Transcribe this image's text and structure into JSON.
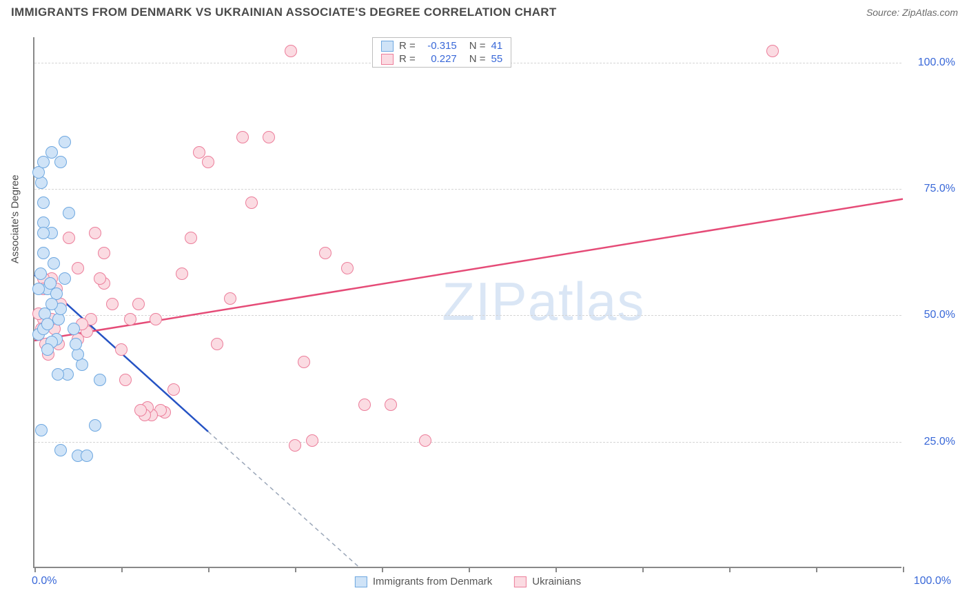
{
  "title": "IMMIGRANTS FROM DENMARK VS UKRAINIAN ASSOCIATE'S DEGREE CORRELATION CHART",
  "source": "Source: ZipAtlas.com",
  "watermark_bold": "ZIP",
  "watermark_thin": "atlas",
  "chart": {
    "type": "scatter",
    "xlim": [
      0,
      100
    ],
    "ylim": [
      0,
      105
    ],
    "x_ticks": [
      0,
      10,
      20,
      30,
      40,
      50,
      60,
      70,
      80,
      90,
      100
    ],
    "y_gridlines": [
      25,
      50,
      75,
      100
    ],
    "y_tick_labels": [
      "25.0%",
      "50.0%",
      "75.0%",
      "100.0%"
    ],
    "x_tick_left": "0.0%",
    "x_tick_right": "100.0%",
    "y_axis_label": "Associate's Degree",
    "background": "#ffffff",
    "grid_color": "#d4d4d4",
    "axis_color": "#888888",
    "tick_label_color": "#3968d8",
    "series": [
      {
        "name": "Immigrants from Denmark",
        "marker_fill": "#cfe3f7",
        "marker_stroke": "#6da7e0",
        "line_color": "#2553c4",
        "dash_color": "#9aa6b8",
        "R_label": "R =",
        "R_value": "-0.315",
        "N_label": "N =",
        "N_value": "41",
        "trend_line": {
          "x1": 0,
          "y1": 58,
          "x2": 20,
          "y2": 27
        },
        "trend_dash": {
          "x1": 20,
          "y1": 27,
          "x2": 37.5,
          "y2": 0
        },
        "points": [
          [
            0.5,
            55
          ],
          [
            1,
            62
          ],
          [
            1,
            66
          ],
          [
            1.5,
            48
          ],
          [
            2,
            52
          ],
          [
            1,
            80
          ],
          [
            2,
            82
          ],
          [
            3.5,
            84
          ],
          [
            3,
            80
          ],
          [
            1,
            72
          ],
          [
            0.5,
            78
          ],
          [
            0.8,
            76
          ],
          [
            1,
            68
          ],
          [
            1.8,
            56
          ],
          [
            2.2,
            60
          ],
          [
            2.5,
            54
          ],
          [
            1.2,
            50
          ],
          [
            1,
            47
          ],
          [
            0.5,
            46
          ],
          [
            1.5,
            43
          ],
          [
            2,
            44.5
          ],
          [
            2.5,
            45
          ],
          [
            3,
            51
          ],
          [
            3.5,
            57
          ],
          [
            4,
            70
          ],
          [
            4.5,
            47
          ],
          [
            4.8,
            44
          ],
          [
            5,
            42
          ],
          [
            2.7,
            38
          ],
          [
            3.8,
            38
          ],
          [
            5.5,
            40
          ],
          [
            6,
            22
          ],
          [
            5,
            22
          ],
          [
            0.8,
            27
          ],
          [
            3,
            23
          ],
          [
            7,
            28
          ],
          [
            7.5,
            37
          ],
          [
            1.5,
            55
          ],
          [
            2,
            66
          ],
          [
            0.7,
            58
          ],
          [
            2.8,
            49
          ]
        ]
      },
      {
        "name": "Ukrainians",
        "marker_fill": "#fbdbe2",
        "marker_stroke": "#ec7d9a",
        "line_color": "#e54b77",
        "R_label": "R =",
        "R_value": "0.227",
        "N_label": "N =",
        "N_value": "55",
        "trend_line": {
          "x1": 0,
          "y1": 45,
          "x2": 100,
          "y2": 73
        },
        "points": [
          [
            0.5,
            50
          ],
          [
            0.8,
            47
          ],
          [
            1,
            49
          ],
          [
            1,
            55
          ],
          [
            1,
            57
          ],
          [
            2,
            57
          ],
          [
            2.5,
            55
          ],
          [
            1.3,
            44
          ],
          [
            1.6,
            42
          ],
          [
            2,
            49
          ],
          [
            2.3,
            47
          ],
          [
            2.8,
            44
          ],
          [
            3,
            52
          ],
          [
            4,
            65
          ],
          [
            5,
            59
          ],
          [
            5,
            45
          ],
          [
            5.5,
            48
          ],
          [
            6,
            46.5
          ],
          [
            6.5,
            49
          ],
          [
            7,
            66
          ],
          [
            7.5,
            57
          ],
          [
            8,
            56
          ],
          [
            8,
            62
          ],
          [
            9,
            52
          ],
          [
            10,
            43
          ],
          [
            10.5,
            37
          ],
          [
            11,
            49
          ],
          [
            12,
            52
          ],
          [
            12.2,
            31
          ],
          [
            12.7,
            30
          ],
          [
            13,
            31.5
          ],
          [
            13.5,
            30
          ],
          [
            14,
            49
          ],
          [
            14.5,
            31
          ],
          [
            15,
            30.5
          ],
          [
            16,
            35
          ],
          [
            17,
            58
          ],
          [
            18,
            65
          ],
          [
            19,
            82
          ],
          [
            20,
            80
          ],
          [
            21,
            44
          ],
          [
            22.5,
            53
          ],
          [
            24,
            85
          ],
          [
            25,
            72
          ],
          [
            27,
            85
          ],
          [
            29.5,
            102
          ],
          [
            30,
            24
          ],
          [
            31,
            40.5
          ],
          [
            32,
            25
          ],
          [
            33.5,
            62
          ],
          [
            36,
            59
          ],
          [
            38,
            32
          ],
          [
            41,
            32
          ],
          [
            45,
            25
          ],
          [
            85,
            102
          ]
        ]
      }
    ]
  }
}
